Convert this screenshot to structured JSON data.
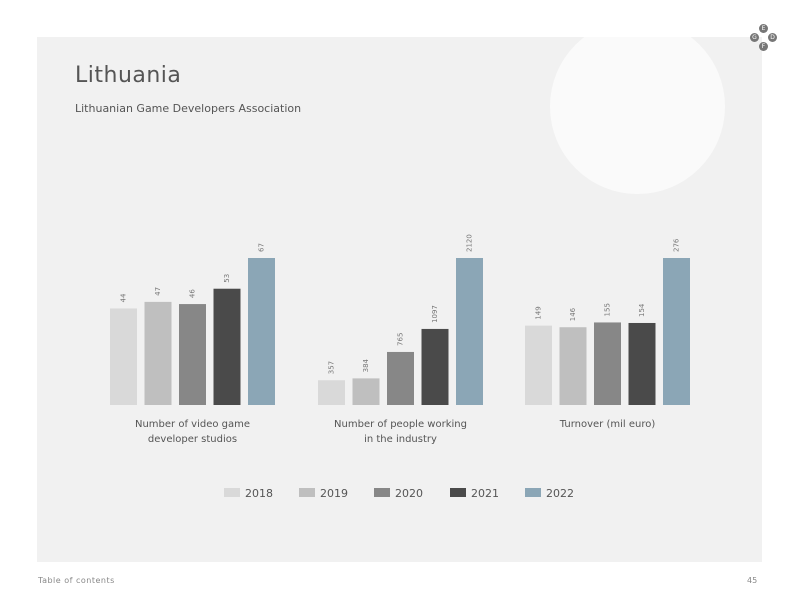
{
  "page": {
    "title": "Lithuania",
    "subtitle": "Lithuanian Game Developers Association",
    "footer_left": "Table of contents",
    "page_number": "45",
    "logo_letters": [
      "E",
      "G",
      "D",
      "F"
    ]
  },
  "colors": {
    "panel": "#f1f1f1",
    "series": [
      "#d9d9d9",
      "#bfbfbf",
      "#878787",
      "#4a4a4a",
      "#8ba6b6"
    ]
  },
  "chart_data": {
    "type": "bar",
    "series_names": [
      "2018",
      "2019",
      "2020",
      "2021",
      "2022"
    ],
    "groups": [
      {
        "label_lines": [
          "Number of video game",
          "developer studios"
        ],
        "values": [
          44,
          47,
          46,
          53,
          67
        ]
      },
      {
        "label_lines": [
          "Number of people working",
          "in the industry"
        ],
        "values": [
          357,
          384,
          765,
          1097,
          2120
        ]
      },
      {
        "label_lines": [
          "Turnover (mil euro)"
        ],
        "values": [
          149,
          146,
          155,
          154,
          276
        ]
      }
    ],
    "legend_position": "bottom",
    "grid": false
  }
}
